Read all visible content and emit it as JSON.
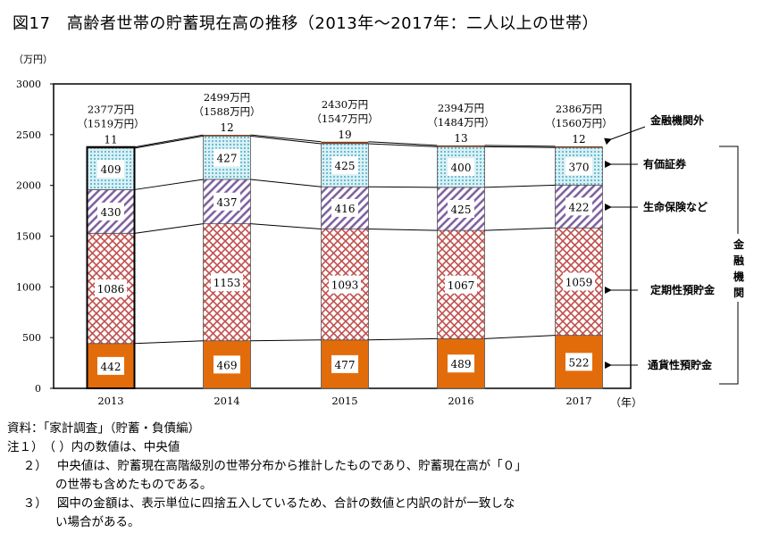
{
  "title": "図17　高齢者世帯の貯蓄現在高の推移（2013年～2017年：二人以上の世帯）",
  "chart_data": {
    "type": "bar",
    "stacked": true,
    "title": "図17　高齢者世帯の貯蓄現在高の推移（2013年～2017年：二人以上の世帯）",
    "ylabel": "（万円）",
    "xlabel": "（年）",
    "ylim": [
      0,
      3000
    ],
    "yticks": [
      0,
      500,
      1000,
      1500,
      2000,
      2500,
      3000
    ],
    "categories": [
      "2013",
      "2014",
      "2015",
      "2016",
      "2017"
    ],
    "series": [
      {
        "name": "通貨性預貯金",
        "values": [
          442,
          469,
          477,
          489,
          522
        ],
        "color": "#e36c0a"
      },
      {
        "name": "定期性預貯金",
        "values": [
          1086,
          1153,
          1093,
          1067,
          1059
        ],
        "color": "#c0504d"
      },
      {
        "name": "生命保険など",
        "values": [
          430,
          437,
          416,
          425,
          422
        ],
        "color": "#8064a2"
      },
      {
        "name": "有価証券",
        "values": [
          409,
          427,
          425,
          400,
          370
        ],
        "color": "#4bacc6"
      },
      {
        "name": "金融機関外",
        "values": [
          11,
          12,
          19,
          13,
          12
        ],
        "color": "#7f3f1f"
      }
    ],
    "totals": [
      "2377万円",
      "2499万円",
      "2430万円",
      "2394万円",
      "2386万円"
    ],
    "medians": [
      "（1519万円）",
      "（1588万円）",
      "（1547万円）",
      "（1484万円）",
      "（1560万円）"
    ],
    "bracket_label": "金融機関",
    "grid": false,
    "legend": "right"
  },
  "notes": [
    "資料：「家計調査」（貯蓄・負債編）",
    "注１）　（ ）内の数値は、中央値",
    "　 ２）　 中央値は、貯蓄現在高階級別の世帯分布から推計したものであり、貯蓄現在高が「０」",
    "　　　　の世帯も含めたものである。",
    "　 ３）　 図中の金額は、表示単位に四捨五入しているため、合計の数値と内訳の計が一致しな",
    "　　　　い場合がある。"
  ]
}
